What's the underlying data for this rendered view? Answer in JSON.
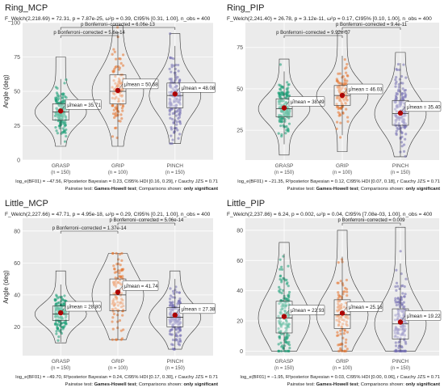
{
  "colors": {
    "grasp": "#1b9e77",
    "grip": "#e6752f",
    "pinch": "#7570b3",
    "mean": "#b30000",
    "panel_bg": "#ebebeb",
    "grid": "#ffffff",
    "text": "#222222"
  },
  "chart_data": [
    {
      "type": "violin-box-scatter",
      "title": "Ring_MCP",
      "stats_text": "F_Welch(2,218.69) = 72.31, p = 7.87e-25, ω²p = 0.39, CI95% [0.31, 1.00], n_obs = 400",
      "ylabel": "Angle (deg)",
      "ylim": [
        0,
        100
      ],
      "yticks": [
        0,
        25,
        50,
        75,
        100
      ],
      "categories": [
        "GRASP",
        "GRIP",
        "PINCH"
      ],
      "counts": [
        "(n = 150)",
        "(n = 100)",
        "(n = 150)"
      ],
      "means": [
        35.71,
        50.68,
        48.08
      ],
      "mean_labels": [
        "μ̂mean = 35.71",
        "μ̂mean = 50.68",
        "μ̂mean = 48.08"
      ],
      "quartiles": [
        [
          29,
          35,
          41
        ],
        [
          41,
          50,
          62
        ],
        [
          38,
          47,
          56
        ]
      ],
      "ranges": [
        [
          10,
          75
        ],
        [
          10,
          98
        ],
        [
          12,
          92
        ]
      ],
      "comparisons": [
        {
          "a": 0,
          "b": 1,
          "label": "p Bonferroni−corrected = 5.6e-14"
        },
        {
          "a": 0,
          "b": 2,
          "label": "p Bonferroni−corrected = 6.06e-13"
        }
      ],
      "footer1": "log_e(BF01) = −47.56, R²posterior Bayesian = 0.23, CI95% HDI [0.16, 0.29], r Cauchy JZS = 0.71",
      "footer2_prefix": "Pairwise test: ",
      "footer2_bold": "Games-Howell test",
      "footer2_mid": "; Comparisons shown: ",
      "footer2_end": "only significant"
    },
    {
      "type": "violin-box-scatter",
      "title": "Ring_PIP",
      "stats_text": "F_Welch(2,241.40) = 26.78, p = 3.12e-11, ω²p = 0.17, CI95% [0.10, 1.00], n_obs = 400",
      "ylabel": "",
      "ylim": [
        7,
        90
      ],
      "yticks": [
        25,
        50,
        75
      ],
      "categories": [
        "GRASP",
        "GRIP",
        "PINCH"
      ],
      "counts": [
        "(n = 150)",
        "(n = 100)",
        "(n = 150)"
      ],
      "means": [
        38.49,
        46.03,
        35.4
      ],
      "mean_labels": [
        "μ̂mean = 38.49",
        "μ̂mean = 46.03",
        "μ̂mean = 35.40"
      ],
      "quartiles": [
        [
          33,
          38,
          44
        ],
        [
          40,
          46,
          52
        ],
        [
          28,
          35,
          43
        ]
      ],
      "ranges": [
        [
          10,
          68
        ],
        [
          12,
          85
        ],
        [
          9,
          72
        ]
      ],
      "comparisons": [
        {
          "a": 0,
          "b": 1,
          "label": "p Bonferroni−corrected = 9.92e-07"
        },
        {
          "a": 1,
          "b": 2,
          "label": "p Bonferroni−corrected = 9.4e-11"
        }
      ],
      "footer1": "log_e(BF01) = −21.35, R²posterior Bayesian = 0.12, CI95% HDI [0.07, 0.18], r Cauchy JZS = 0.71",
      "footer2_prefix": "Pairwise test: ",
      "footer2_bold": "Games-Howell test",
      "footer2_mid": "; Comparisons shown: ",
      "footer2_end": "only significant"
    },
    {
      "type": "violin-box-scatter",
      "title": "Little_MCP",
      "stats_text": "F_Welch(2,227.66) = 47.71, p = 4.95e-18, ω²p = 0.29, CI95% [0.21, 1.00], n_obs = 400",
      "ylabel": "Angle (deg)",
      "ylim": [
        2,
        88
      ],
      "yticks": [
        20,
        40,
        60,
        80
      ],
      "categories": [
        "GRASP",
        "GRIP",
        "PINCH"
      ],
      "counts": [
        "(n = 150)",
        "(n = 100)",
        "(n = 150)"
      ],
      "means": [
        28.8,
        41.74,
        27.38
      ],
      "mean_labels": [
        "μ̂mean = 28.80",
        "μ̂mean = 41.74",
        "μ̂mean = 27.38"
      ],
      "quartiles": [
        [
          24,
          28,
          33
        ],
        [
          30,
          40,
          50
        ],
        [
          20,
          26,
          32
        ]
      ],
      "ranges": [
        [
          10,
          55
        ],
        [
          12,
          66
        ],
        [
          6,
          55
        ]
      ],
      "comparisons": [
        {
          "a": 0,
          "b": 1,
          "label": "p Bonferroni−corrected = 1.37e-14"
        },
        {
          "a": 1,
          "b": 2,
          "label": "p Bonferroni−corrected = 5.06e-14"
        }
      ],
      "footer1": "log_e(BF01) = −49.70, R²posterior Bayesian = 0.24, CI95% HDI [0.17, 0.30], r Cauchy JZS = 0.71",
      "footer2_prefix": "Pairwise test: ",
      "footer2_bold": "Games-Howell test",
      "footer2_mid": "; Comparisons shown: ",
      "footer2_end": "only significant"
    },
    {
      "type": "violin-box-scatter",
      "title": "Little_PIP",
      "stats_text": "F_Welch(2,237.86) = 6.24, p = 0.002, ω²p = 0.04, CI95% [7.08e-03, 1.00], n_obs = 400",
      "ylabel": "",
      "ylim": [
        -3,
        88
      ],
      "yticks": [
        0,
        20,
        40,
        60,
        80
      ],
      "categories": [
        "GRASP",
        "GRIP",
        "PINCH"
      ],
      "counts": [
        "(n = 150)",
        "(n = 100)",
        "(n = 150)"
      ],
      "means": [
        22.93,
        25.16,
        19.22
      ],
      "mean_labels": [
        "μ̂mean = 22.93",
        "μ̂mean = 25.16",
        "μ̂mean = 19.22"
      ],
      "quartiles": [
        [
          12,
          22,
          33
        ],
        [
          15,
          24,
          34
        ],
        [
          8,
          18,
          28
        ]
      ],
      "ranges": [
        [
          0,
          72
        ],
        [
          0,
          80
        ],
        [
          0,
          82
        ]
      ],
      "comparisons": [
        {
          "a": 1,
          "b": 2,
          "label": "p Bonferroni−corrected = 0.009"
        }
      ],
      "footer1": "log_e(BF01) = −1.95, R²posterior Bayesian = 0.03, CI95% HDI [0.00, 0.06], r Cauchy JZS = 0.71",
      "footer2_prefix": "Pairwise test: ",
      "footer2_bold": "Games-Howell test",
      "footer2_mid": "; Comparisons shown: ",
      "footer2_end": "only significant"
    }
  ]
}
